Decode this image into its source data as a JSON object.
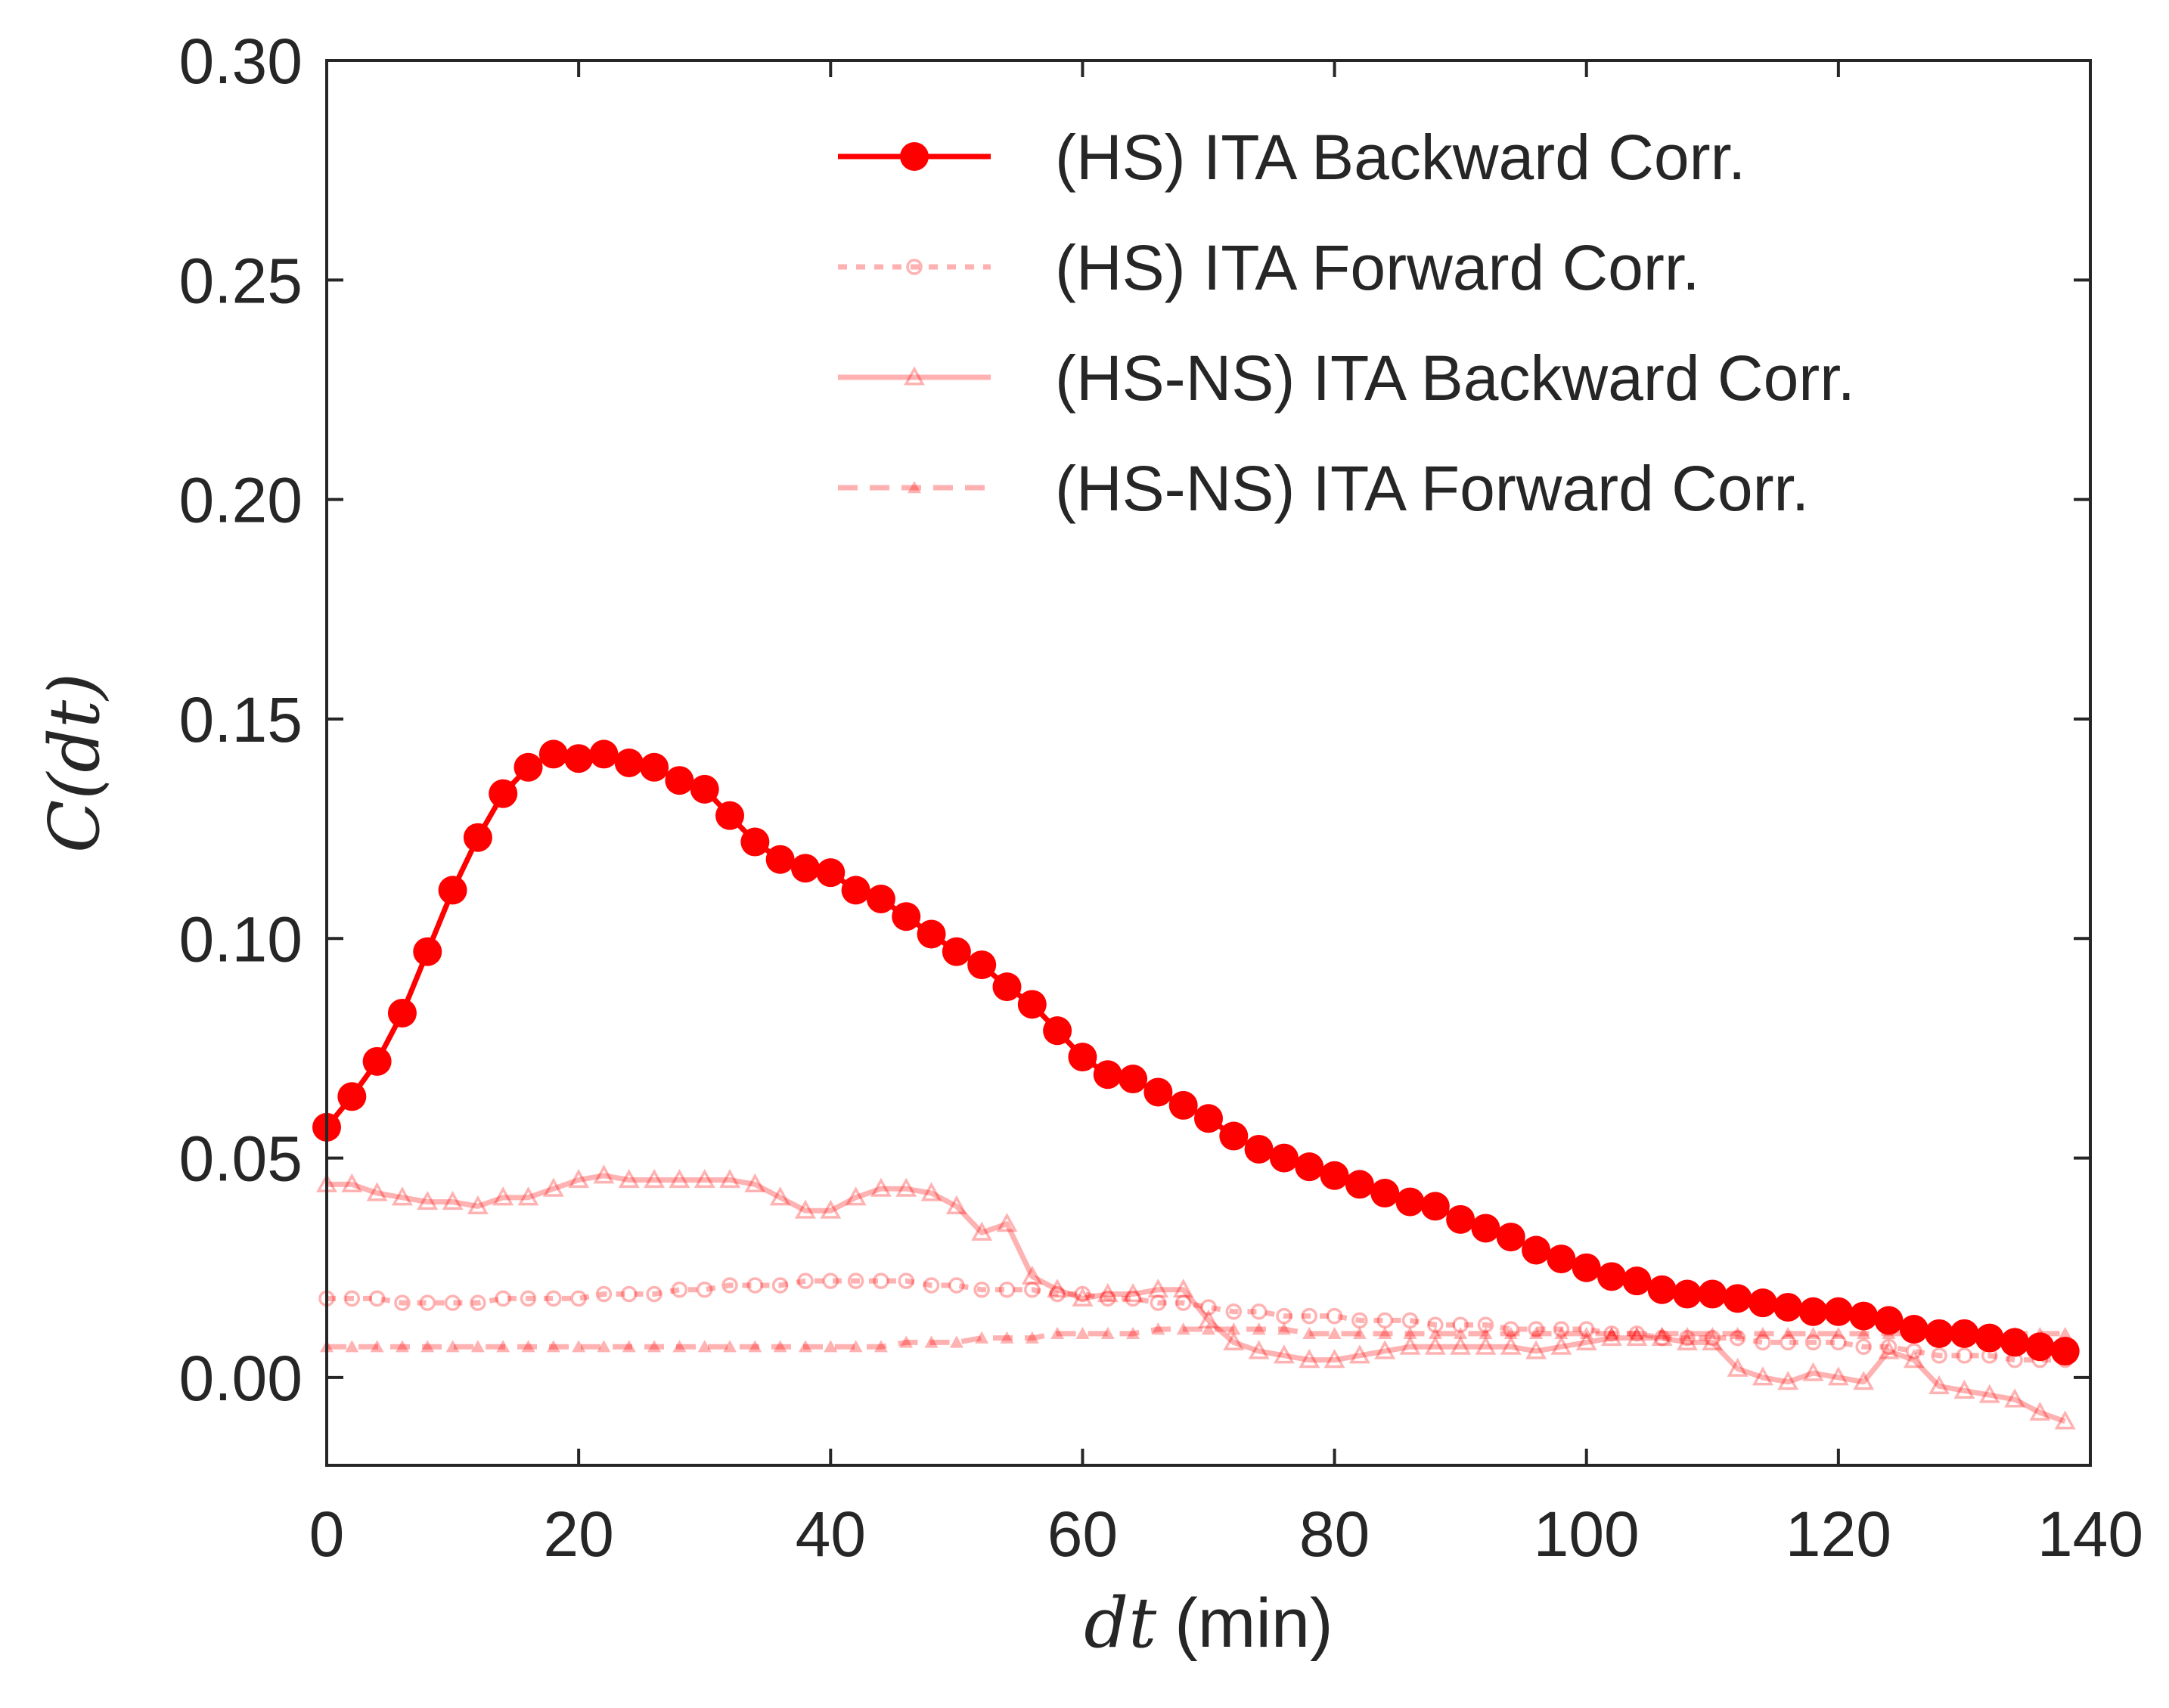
{
  "chart_data": {
    "type": "line",
    "title": "",
    "xlabel_math": "dt",
    "xlabel_unit": "(min)",
    "ylabel_math": "C(dt)",
    "xlim": [
      0,
      140
    ],
    "ylim": [
      -0.02,
      0.3
    ],
    "x_ticks": [
      0,
      20,
      40,
      60,
      80,
      100,
      120,
      140
    ],
    "x_tick_labels": [
      "0",
      "20",
      "40",
      "60",
      "80",
      "100",
      "120",
      "140"
    ],
    "y_ticks": [
      0.0,
      0.05,
      0.1,
      0.15,
      0.2,
      0.25,
      0.3
    ],
    "y_tick_labels": [
      "0.00",
      "0.05",
      "0.10",
      "0.15",
      "0.20",
      "0.25",
      "0.30"
    ],
    "legend_position": "top-right",
    "x": [
      0,
      2,
      4,
      6,
      8,
      10,
      12,
      14,
      16,
      18,
      20,
      22,
      24,
      26,
      28,
      30,
      32,
      34,
      36,
      38,
      40,
      42,
      44,
      46,
      48,
      50,
      52,
      54,
      56,
      58,
      60,
      62,
      64,
      66,
      68,
      70,
      72,
      74,
      76,
      78,
      80,
      82,
      84,
      86,
      88,
      90,
      92,
      94,
      96,
      98,
      100,
      102,
      104,
      106,
      108,
      110,
      112,
      114,
      116,
      118,
      120,
      122,
      124,
      126,
      128,
      130,
      132,
      134,
      136,
      138
    ],
    "series": [
      {
        "name": "(HS) ITA Backward Corr.",
        "color": "#ff0000",
        "style": "solid",
        "marker": "circle-filled",
        "values": [
          0.057,
          0.064,
          0.072,
          0.083,
          0.097,
          0.111,
          0.123,
          0.133,
          0.139,
          0.142,
          0.141,
          0.142,
          0.14,
          0.139,
          0.136,
          0.134,
          0.128,
          0.122,
          0.118,
          0.116,
          0.115,
          0.111,
          0.109,
          0.105,
          0.101,
          0.097,
          0.094,
          0.089,
          0.085,
          0.079,
          0.073,
          0.069,
          0.068,
          0.065,
          0.062,
          0.059,
          0.055,
          0.052,
          0.05,
          0.048,
          0.046,
          0.044,
          0.042,
          0.04,
          0.039,
          0.036,
          0.034,
          0.032,
          0.029,
          0.027,
          0.025,
          0.023,
          0.022,
          0.02,
          0.019,
          0.019,
          0.018,
          0.017,
          0.016,
          0.015,
          0.015,
          0.014,
          0.013,
          0.011,
          0.01,
          0.01,
          0.009,
          0.008,
          0.007,
          0.006
        ]
      },
      {
        "name": "(HS) ITA Forward Corr.",
        "color": "#ff0000",
        "opacity": 0.3,
        "style": "dotted",
        "marker": "circle-open",
        "values": [
          0.018,
          0.018,
          0.018,
          0.017,
          0.017,
          0.017,
          0.017,
          0.018,
          0.018,
          0.018,
          0.018,
          0.019,
          0.019,
          0.019,
          0.02,
          0.02,
          0.021,
          0.021,
          0.021,
          0.022,
          0.022,
          0.022,
          0.022,
          0.022,
          0.021,
          0.021,
          0.02,
          0.02,
          0.02,
          0.019,
          0.019,
          0.018,
          0.018,
          0.017,
          0.017,
          0.016,
          0.015,
          0.015,
          0.014,
          0.014,
          0.014,
          0.013,
          0.013,
          0.013,
          0.012,
          0.012,
          0.012,
          0.011,
          0.011,
          0.011,
          0.011,
          0.01,
          0.01,
          0.009,
          0.009,
          0.009,
          0.009,
          0.008,
          0.008,
          0.008,
          0.008,
          0.007,
          0.007,
          0.006,
          0.005,
          0.005,
          0.005,
          0.004,
          0.004,
          0.004
        ]
      },
      {
        "name": "(HS-NS) ITA Backward Corr.",
        "color": "#ff0000",
        "opacity": 0.3,
        "style": "solid",
        "marker": "triangle-open",
        "values": [
          0.044,
          0.044,
          0.042,
          0.041,
          0.04,
          0.04,
          0.039,
          0.041,
          0.041,
          0.043,
          0.045,
          0.046,
          0.045,
          0.045,
          0.045,
          0.045,
          0.045,
          0.044,
          0.041,
          0.038,
          0.038,
          0.041,
          0.043,
          0.043,
          0.042,
          0.039,
          0.033,
          0.035,
          0.023,
          0.02,
          0.018,
          0.019,
          0.019,
          0.02,
          0.02,
          0.013,
          0.008,
          0.006,
          0.005,
          0.004,
          0.004,
          0.005,
          0.006,
          0.007,
          0.007,
          0.007,
          0.007,
          0.007,
          0.006,
          0.007,
          0.008,
          0.009,
          0.009,
          0.009,
          0.008,
          0.008,
          0.002,
          0.0,
          -0.001,
          0.001,
          0.0,
          -0.001,
          0.006,
          0.004,
          -0.002,
          -0.003,
          -0.004,
          -0.005,
          -0.008,
          -0.01
        ]
      },
      {
        "name": "(HS-NS) ITA Forward Corr.",
        "color": "#ff0000",
        "opacity": 0.3,
        "style": "dashed",
        "marker": "triangle-filled",
        "values": [
          0.007,
          0.007,
          0.007,
          0.007,
          0.007,
          0.007,
          0.007,
          0.007,
          0.007,
          0.007,
          0.007,
          0.007,
          0.007,
          0.007,
          0.007,
          0.007,
          0.007,
          0.007,
          0.007,
          0.007,
          0.007,
          0.007,
          0.007,
          0.008,
          0.008,
          0.008,
          0.009,
          0.009,
          0.009,
          0.01,
          0.01,
          0.01,
          0.01,
          0.011,
          0.011,
          0.011,
          0.011,
          0.011,
          0.011,
          0.01,
          0.01,
          0.01,
          0.01,
          0.01,
          0.01,
          0.01,
          0.01,
          0.01,
          0.01,
          0.01,
          0.01,
          0.01,
          0.01,
          0.01,
          0.01,
          0.01,
          0.01,
          0.01,
          0.01,
          0.01,
          0.01,
          0.01,
          0.01,
          0.01,
          0.01,
          0.01,
          0.01,
          0.01,
          0.01,
          0.01
        ]
      }
    ]
  }
}
